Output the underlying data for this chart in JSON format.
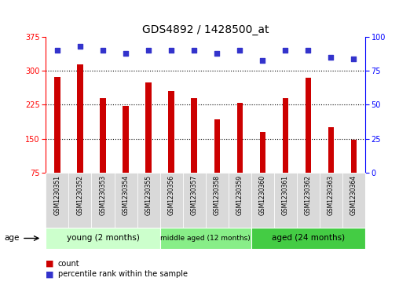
{
  "title": "GDS4892 / 1428500_at",
  "samples": [
    "GSM1230351",
    "GSM1230352",
    "GSM1230353",
    "GSM1230354",
    "GSM1230355",
    "GSM1230356",
    "GSM1230357",
    "GSM1230358",
    "GSM1230359",
    "GSM1230360",
    "GSM1230361",
    "GSM1230362",
    "GSM1230363",
    "GSM1230364"
  ],
  "counts": [
    287,
    315,
    240,
    222,
    275,
    255,
    240,
    193,
    230,
    165,
    240,
    285,
    175,
    148
  ],
  "percentile_ranks": [
    90,
    93,
    90,
    88,
    90,
    90,
    90,
    88,
    90,
    83,
    90,
    90,
    85,
    84
  ],
  "bar_color": "#cc0000",
  "dot_color": "#3333cc",
  "ylim_left": [
    75,
    375
  ],
  "yticks_left": [
    75,
    150,
    225,
    300,
    375
  ],
  "ylim_right": [
    0,
    100
  ],
  "yticks_right": [
    0,
    25,
    50,
    75,
    100
  ],
  "groups": [
    {
      "label": "young (2 months)",
      "start": 0,
      "end": 4
    },
    {
      "label": "middle aged (12 months)",
      "start": 5,
      "end": 8
    },
    {
      "label": "aged (24 months)",
      "start": 9,
      "end": 13
    }
  ],
  "group_colors": [
    "#ccffcc",
    "#88ee88",
    "#44cc44"
  ],
  "legend_count_color": "#cc0000",
  "legend_dot_color": "#3333cc",
  "background_color": "#ffffff",
  "bar_width": 0.25,
  "title_fontsize": 10,
  "tick_fontsize": 7,
  "label_fontsize": 7.5
}
